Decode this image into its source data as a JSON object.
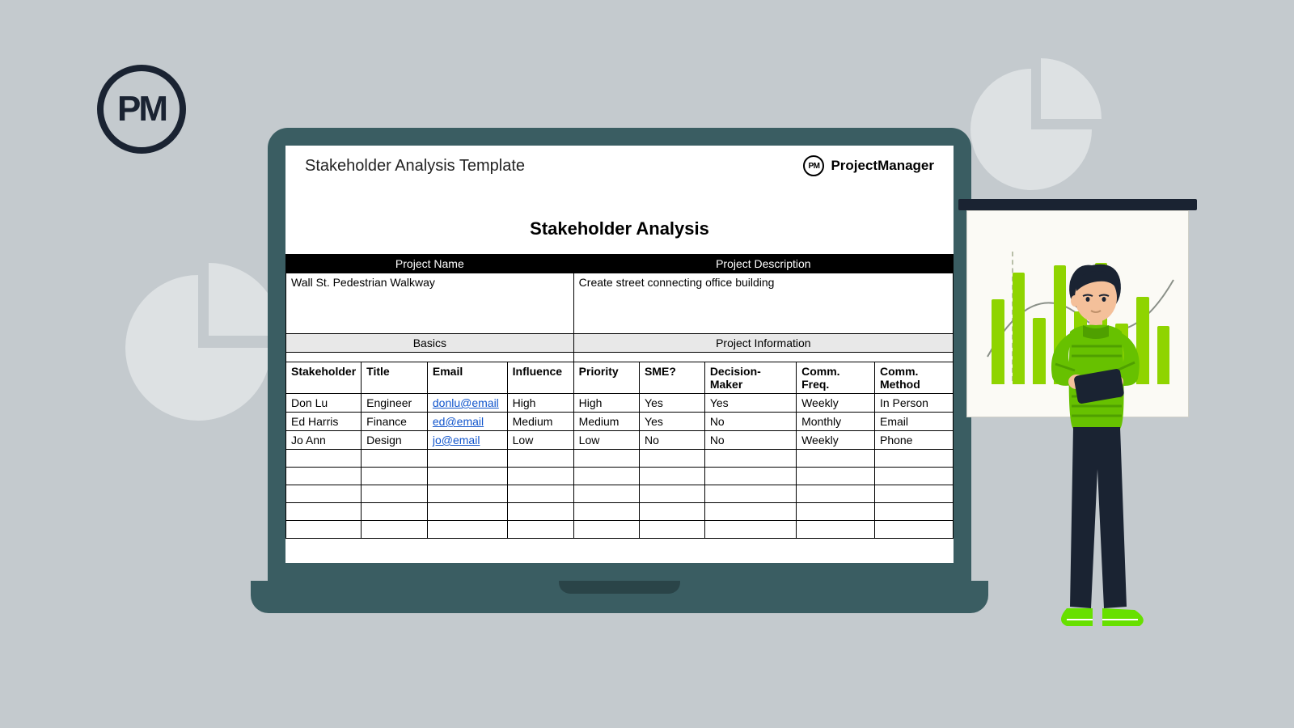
{
  "logo_text": "PM",
  "brand": {
    "icon_text": "PM",
    "name": "ProjectManager"
  },
  "template_title": "Stakeholder Analysis Template",
  "doc_title": "Stakeholder Analysis",
  "project_headers": {
    "name": "Project Name",
    "description": "Project Description"
  },
  "project": {
    "name": "Wall St. Pedestrian Walkway",
    "description": "Create street connecting office building"
  },
  "sections": {
    "basics": "Basics",
    "project_info": "Project Information"
  },
  "columns": {
    "stakeholder": "Stakeholder",
    "title": "Title",
    "email": "Email",
    "influence": "Influence",
    "priority": "Priority",
    "sme": "SME?",
    "decision": "Decision-Maker",
    "freq": "Comm. Freq.",
    "method": "Comm. Method"
  },
  "rows": [
    {
      "stakeholder": "Don Lu",
      "title": "Engineer",
      "email": "donlu@email",
      "influence": "High",
      "priority": "High",
      "sme": "Yes",
      "decision": "Yes",
      "freq": "Weekly",
      "method": "In Person"
    },
    {
      "stakeholder": "Ed Harris",
      "title": "Finance",
      "email": "ed@email",
      "influence": "Medium",
      "priority": "Medium",
      "sme": "Yes",
      "decision": "No",
      "freq": "Monthly",
      "method": "Email"
    },
    {
      "stakeholder": "Jo Ann",
      "title": "Design",
      "email": "jo@email",
      "influence": "Low",
      "priority": "Low",
      "sme": "No",
      "decision": "No",
      "freq": "Weekly",
      "method": "Phone"
    }
  ],
  "empty_row_count": 5,
  "board_chart": {
    "bar_heights_pct": [
      70,
      92,
      55,
      98,
      60,
      100,
      50,
      72,
      48
    ],
    "bar_color": "#8fd400"
  },
  "colors": {
    "background": "#c4cace",
    "laptop": "#3a5d62",
    "logo": "#1a2332",
    "black": "#000000",
    "section_gray": "#e8e8e8",
    "link": "#1155cc",
    "deco_gray": "#dde1e3",
    "board_bg": "#fbfaf5"
  }
}
